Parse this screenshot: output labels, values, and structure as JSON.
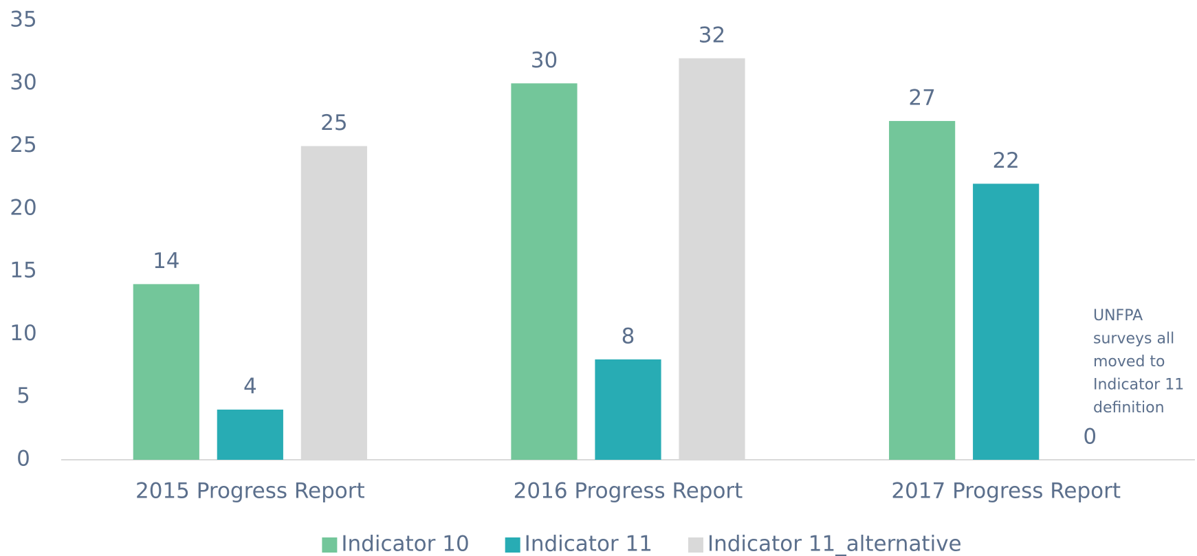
{
  "chart_data": {
    "type": "bar",
    "categories": [
      "2015 Progress Report",
      "2016 Progress Report",
      "2017 Progress Report"
    ],
    "series": [
      {
        "name": "Indicator 10",
        "color": "#73c69a",
        "values": [
          14,
          30,
          27
        ]
      },
      {
        "name": "Indicator 11",
        "color": "#28acb4",
        "values": [
          4,
          8,
          22
        ]
      },
      {
        "name": "Indicator 11_alternative",
        "color": "#d9d9d9",
        "values": [
          25,
          32,
          0
        ]
      }
    ],
    "ylim": [
      0,
      35
    ],
    "yticks": [
      0,
      5,
      10,
      15,
      20,
      25,
      30,
      35
    ],
    "annotation": [
      "UNFPA",
      "surveys all",
      "moved to",
      "Indicator 11",
      "definition"
    ],
    "legend": "bottom"
  }
}
